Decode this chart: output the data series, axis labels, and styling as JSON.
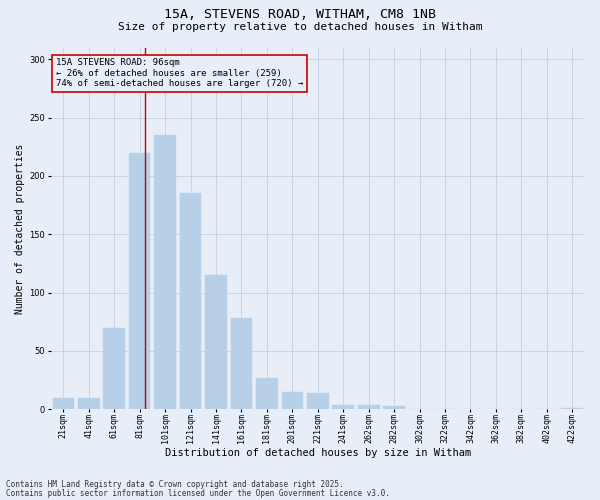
{
  "title_line1": "15A, STEVENS ROAD, WITHAM, CM8 1NB",
  "title_line2": "Size of property relative to detached houses in Witham",
  "xlabel": "Distribution of detached houses by size in Witham",
  "ylabel": "Number of detached properties",
  "bin_labels": [
    "21sqm",
    "41sqm",
    "61sqm",
    "81sqm",
    "101sqm",
    "121sqm",
    "141sqm",
    "161sqm",
    "181sqm",
    "201sqm",
    "221sqm",
    "241sqm",
    "262sqm",
    "282sqm",
    "302sqm",
    "322sqm",
    "342sqm",
    "362sqm",
    "382sqm",
    "402sqm",
    "422sqm"
  ],
  "bar_heights": [
    10,
    10,
    70,
    220,
    235,
    185,
    115,
    78,
    27,
    15,
    14,
    4,
    4,
    3,
    0,
    0,
    0,
    0,
    0,
    0,
    1
  ],
  "bar_color": "#b8cfe8",
  "bar_edge_color": "#b8cfe8",
  "grid_color": "#c8d4e8",
  "background_color": "#e8eef8",
  "annotation_title": "15A STEVENS ROAD: 96sqm",
  "annotation_line2": "← 26% of detached houses are smaller (259)",
  "annotation_line3": "74% of semi-detached houses are larger (720) →",
  "annotation_box_color": "#cc0000",
  "red_line_color": "#cc0000",
  "footnote1": "Contains HM Land Registry data © Crown copyright and database right 2025.",
  "footnote2": "Contains public sector information licensed under the Open Government Licence v3.0.",
  "ylim": [
    0,
    310
  ],
  "yticks": [
    0,
    50,
    100,
    150,
    200,
    250,
    300
  ],
  "title1_fontsize": 9.5,
  "title2_fontsize": 8,
  "xlabel_fontsize": 7.5,
  "ylabel_fontsize": 7,
  "tick_fontsize": 6,
  "annot_fontsize": 6.5,
  "footnote_fontsize": 5.5
}
